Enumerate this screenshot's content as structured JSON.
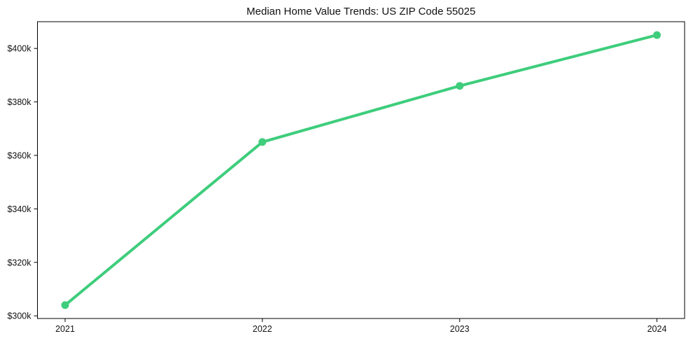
{
  "figure": {
    "background": "#ffffff",
    "text_color": "#111111",
    "spine_color": "#000000"
  },
  "chart_data": {
    "type": "line",
    "title": "Median Home Value Trends: US ZIP Code 55025",
    "x": [
      2021,
      2022,
      2023,
      2024
    ],
    "x_tick_labels": [
      "2021",
      "2022",
      "2023",
      "2024"
    ],
    "values_k_usd": [
      304,
      365,
      386,
      405
    ],
    "value_unit": "USD (thousands)",
    "y_ticks_k_usd": [
      300,
      320,
      340,
      360,
      380,
      400
    ],
    "y_tick_labels": [
      "$300k",
      "$320k",
      "$340k",
      "$360k",
      "$380k",
      "$400k"
    ],
    "xlim": [
      2020.86,
      2024.14
    ],
    "ylim_k_usd": [
      299,
      410
    ],
    "line_color": "#3ecd7c",
    "line_width": 4,
    "marker": "circle",
    "marker_radius": 5.5,
    "grid": false,
    "legend": "none",
    "axes_box": true
  }
}
